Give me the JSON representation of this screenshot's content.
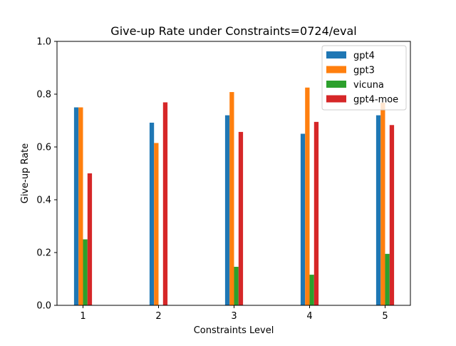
{
  "chart_data": {
    "type": "bar",
    "title": "Give-up Rate under Constraints=0724/eval",
    "xlabel": "Constraints Level",
    "ylabel": "Give-up Rate",
    "ylim": [
      0,
      1.0
    ],
    "yticks": [
      "0.0",
      "0.2",
      "0.4",
      "0.6",
      "0.8",
      "1.0"
    ],
    "categories": [
      "1",
      "2",
      "3",
      "4",
      "5"
    ],
    "grid": false,
    "legend_position": "top-right",
    "series": [
      {
        "name": "gpt4",
        "color": "#1f77b4",
        "values": [
          0.75,
          0.692,
          0.72,
          0.65,
          0.72
        ]
      },
      {
        "name": "gpt3",
        "color": "#ff7f0e",
        "values": [
          0.75,
          0.615,
          0.808,
          0.825,
          0.768
        ]
      },
      {
        "name": "vicuna",
        "color": "#2ca02c",
        "values": [
          0.25,
          0.0,
          0.146,
          0.116,
          0.195
        ]
      },
      {
        "name": "gpt4-moe",
        "color": "#d62728",
        "values": [
          0.5,
          0.769,
          0.657,
          0.695,
          0.683
        ]
      }
    ]
  }
}
